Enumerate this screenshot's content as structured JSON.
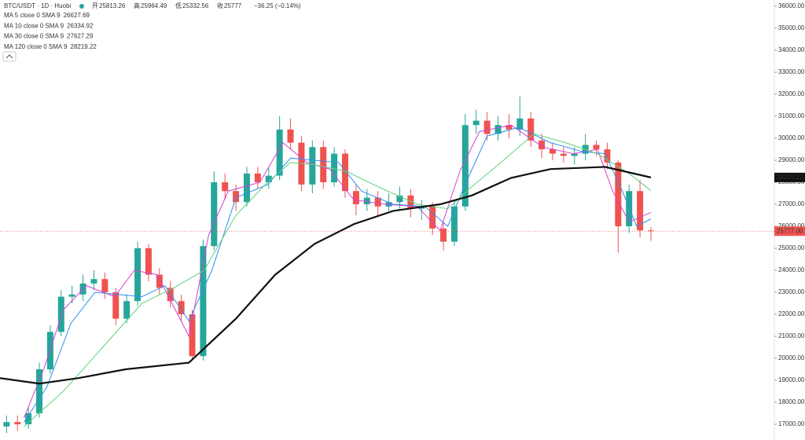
{
  "chart_data": {
    "type": "candlestick",
    "title": "BTC/USDT · 1D · Huobi",
    "ohlc_labels": [
      "开",
      "高",
      "低",
      "收"
    ],
    "change": "−36.25 (−0.14%)",
    "up_color": "#26a69a",
    "down_color": "#ef5350",
    "x": [
      0,
      1,
      2,
      3,
      4,
      5,
      6,
      7,
      8,
      9,
      10,
      11,
      12,
      13,
      14,
      15,
      16,
      17,
      18,
      19,
      20,
      21,
      22,
      23,
      24,
      25,
      26,
      27,
      28,
      29,
      30,
      31,
      32,
      33,
      34,
      35,
      36,
      37,
      38,
      39,
      40,
      41,
      42,
      43,
      44,
      45,
      46,
      47,
      48,
      49,
      50,
      51,
      52,
      53,
      54,
      55,
      56,
      57,
      58,
      59
    ],
    "open": [
      16900,
      17100,
      17000,
      17500,
      19500,
      21200,
      22800,
      22900,
      23400,
      23600,
      23000,
      21800,
      22600,
      25000,
      23800,
      23200,
      22600,
      22000,
      20100,
      25100,
      28000,
      27600,
      27100,
      28400,
      28000,
      28300,
      30400,
      29800,
      27900,
      29600,
      28000,
      29300,
      27600,
      27000,
      27300,
      26900,
      27100,
      27400,
      26800,
      26900,
      25900,
      25300,
      26900,
      30600,
      30800,
      30200,
      30600,
      30400,
      30900,
      29900,
      29500,
      29300,
      29200,
      29300,
      29700,
      29500,
      28900,
      26000,
      27600,
      25813.26
    ],
    "high": [
      17400,
      17400,
      17800,
      19800,
      21500,
      23100,
      23300,
      23800,
      24000,
      23900,
      23200,
      22900,
      25300,
      25200,
      24100,
      23500,
      22900,
      22200,
      25400,
      28500,
      28400,
      27900,
      28700,
      28700,
      28700,
      31000,
      30900,
      30100,
      29900,
      29900,
      29600,
      29500,
      27900,
      27700,
      27600,
      27500,
      27800,
      27700,
      27200,
      27100,
      26200,
      27200,
      31100,
      31300,
      31200,
      31000,
      31100,
      31900,
      31200,
      30200,
      29800,
      29600,
      29600,
      30200,
      29900,
      29800,
      29000,
      27900,
      28100,
      25964.49
    ],
    "low": [
      16600,
      16700,
      16800,
      17300,
      19300,
      21000,
      22500,
      22600,
      23100,
      22700,
      21500,
      21600,
      22400,
      23500,
      22900,
      22300,
      21700,
      19900,
      19900,
      24900,
      27200,
      26700,
      26900,
      27700,
      27700,
      28100,
      29500,
      27600,
      27500,
      27700,
      27800,
      27300,
      26500,
      26700,
      26500,
      26600,
      26800,
      26400,
      26300,
      25600,
      24900,
      25100,
      26700,
      30200,
      29900,
      29900,
      30000,
      30100,
      29600,
      29100,
      29000,
      28900,
      28800,
      29000,
      29200,
      28600,
      24800,
      25700,
      25500,
      25332.56
    ],
    "close": [
      17100,
      17000,
      17500,
      19500,
      21200,
      22800,
      22900,
      23400,
      23600,
      23000,
      21800,
      22600,
      25000,
      23800,
      23200,
      22600,
      22000,
      20100,
      25100,
      28000,
      27600,
      27100,
      28400,
      28000,
      28300,
      30400,
      29800,
      27900,
      29600,
      28000,
      29300,
      27600,
      27000,
      27300,
      26900,
      27100,
      27400,
      26800,
      26900,
      25900,
      25300,
      26900,
      30600,
      30800,
      30200,
      30600,
      30400,
      30900,
      29900,
      29500,
      29300,
      29200,
      29300,
      29700,
      29500,
      28900,
      26000,
      27600,
      25813.26,
      25777
    ],
    "last_price": {
      "value": 25777,
      "label": "25777.00"
    },
    "series": [
      {
        "name": "MA 5 close 0 SMA 9",
        "color": "#d63fd6",
        "x": [
          1.6,
          3.4,
          5.2,
          7.3,
          9.9,
          11.7,
          13.8,
          16.7,
          18.5,
          20.3,
          23.2,
          25.3,
          27.5,
          29.6,
          31.8,
          34.7,
          37.6,
          39.7,
          41.5,
          43.3,
          46.2,
          49.1,
          51.9,
          54.1,
          55.5,
          57,
          59
        ],
        "values": [
          17300,
          19500,
          22200,
          23300,
          22800,
          24000,
          23800,
          21000,
          25600,
          27600,
          28000,
          29800,
          28900,
          28600,
          27200,
          27000,
          26900,
          25800,
          28500,
          30300,
          30600,
          29600,
          29300,
          29500,
          27600,
          26200,
          26627.69
        ]
      },
      {
        "name": "MA 10 close 0 SMA 9",
        "color": "#2f8ff0",
        "x": [
          1.6,
          3.7,
          5.9,
          8.1,
          10.2,
          12.4,
          14.5,
          16.7,
          18.8,
          21,
          23.9,
          26,
          28.2,
          30.4,
          32.5,
          35.4,
          38.3,
          40.4,
          41.9,
          44,
          46.9,
          49.8,
          52.7,
          54.8,
          56.3,
          57.7,
          59
        ],
        "values": [
          17100,
          18700,
          21600,
          23000,
          22900,
          22800,
          23300,
          21700,
          24000,
          27300,
          27900,
          29100,
          29000,
          28900,
          27600,
          27000,
          26900,
          26000,
          27800,
          30100,
          30500,
          29800,
          29400,
          29300,
          27700,
          26000,
          26334.92
        ]
      },
      {
        "name": "MA 30 close 0 SMA 9",
        "color": "#5fd27a",
        "x": [
          1.6,
          5.2,
          8.8,
          12.4,
          15.3,
          18.1,
          21,
          23.9,
          26,
          28.2,
          31.1,
          34,
          37.6,
          40.4,
          42.6,
          45.5,
          48.3,
          51.2,
          54.1,
          57,
          59
        ],
        "values": [
          16900,
          18500,
          20500,
          22500,
          23200,
          24000,
          26500,
          28000,
          28900,
          28800,
          28500,
          27800,
          27000,
          26800,
          27800,
          29000,
          30200,
          29800,
          29300,
          28400,
          27627.29
        ]
      },
      {
        "name": "MA 120 close 0 SMA 9",
        "color": "#111111",
        "x": [
          -0.6,
          3,
          6.6,
          10.9,
          16.7,
          21,
          24.6,
          28.2,
          31.8,
          35.4,
          39.7,
          42.6,
          46.2,
          49.8,
          54.8,
          59
        ],
        "values": [
          19100,
          18850,
          19100,
          19500,
          19800,
          21800,
          23800,
          25200,
          26100,
          26700,
          27000,
          27400,
          28200,
          28600,
          28700,
          28219.22
        ]
      }
    ],
    "xlim": [
      -0.6,
      70.3
    ],
    "ylim": [
      16286,
      36286
    ],
    "yticks": [
      {
        "value": 17000,
        "label": "17000.00"
      },
      {
        "value": 18000,
        "label": "18000.00"
      },
      {
        "value": 19000,
        "label": "19000.00"
      },
      {
        "value": 20000,
        "label": "20000.00"
      },
      {
        "value": 21000,
        "label": "21000.00"
      },
      {
        "value": 22000,
        "label": "22000.00"
      },
      {
        "value": 23000,
        "label": "23000.00"
      },
      {
        "value": 24000,
        "label": "24000.00"
      },
      {
        "value": 25000,
        "label": "25000.00"
      },
      {
        "value": 26000,
        "label": "26000.00"
      },
      {
        "value": 27000,
        "label": "27000.00"
      },
      {
        "value": 28000,
        "label": "28000.00"
      },
      {
        "value": 29000,
        "label": "29000.00"
      },
      {
        "value": 30000,
        "label": "30000.00"
      },
      {
        "value": 31000,
        "label": "31000.00"
      },
      {
        "value": 32000,
        "label": "32000.00"
      },
      {
        "value": 33000,
        "label": "33000.00"
      },
      {
        "value": 34000,
        "label": "34000.00"
      },
      {
        "value": 35000,
        "label": "35000.00"
      },
      {
        "value": 36000,
        "label": "36000.00"
      }
    ]
  }
}
